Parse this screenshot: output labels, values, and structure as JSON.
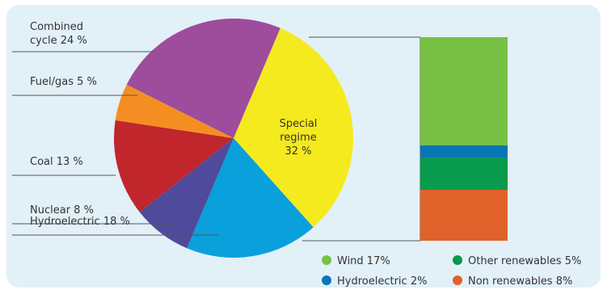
{
  "chart_data": {
    "type": "pie",
    "pie": {
      "slices": [
        {
          "key": "special",
          "label_lines": [
            "Special",
            "regime",
            "32 %"
          ],
          "value": 32,
          "color": "#f5ea1e"
        },
        {
          "key": "hydro",
          "label_lines": [
            "Hydroelectric 18 %"
          ],
          "value": 18,
          "color": "#09a0dc"
        },
        {
          "key": "nuclear",
          "label_lines": [
            "Nuclear 8 %"
          ],
          "value": 8,
          "color": "#4f4a9c"
        },
        {
          "key": "coal",
          "label_lines": [
            "Coal 13 %"
          ],
          "value": 13,
          "color": "#c0262c"
        },
        {
          "key": "fuel",
          "label_lines": [
            "Fuel/gas 5 %"
          ],
          "value": 5,
          "color": "#f58e22"
        },
        {
          "key": "combined",
          "label_lines": [
            "Combined",
            "cycle 24 %"
          ],
          "value": 24,
          "color": "#9e4c9c"
        }
      ]
    },
    "breakdown_bar": {
      "segments": [
        {
          "label": "Wind 17%",
          "value": 17,
          "color": "#78c144"
        },
        {
          "label": "Hydroelectric 2%",
          "value": 2,
          "color": "#0a76b4"
        },
        {
          "label": "Other renewables 5%",
          "value": 5,
          "color": "#089a4c"
        },
        {
          "label": "Non renewables 8%",
          "value": 8,
          "color": "#e0622a"
        }
      ]
    }
  },
  "colors": {
    "panel_background": "#e2f0f8",
    "leader_line": "#555555"
  }
}
